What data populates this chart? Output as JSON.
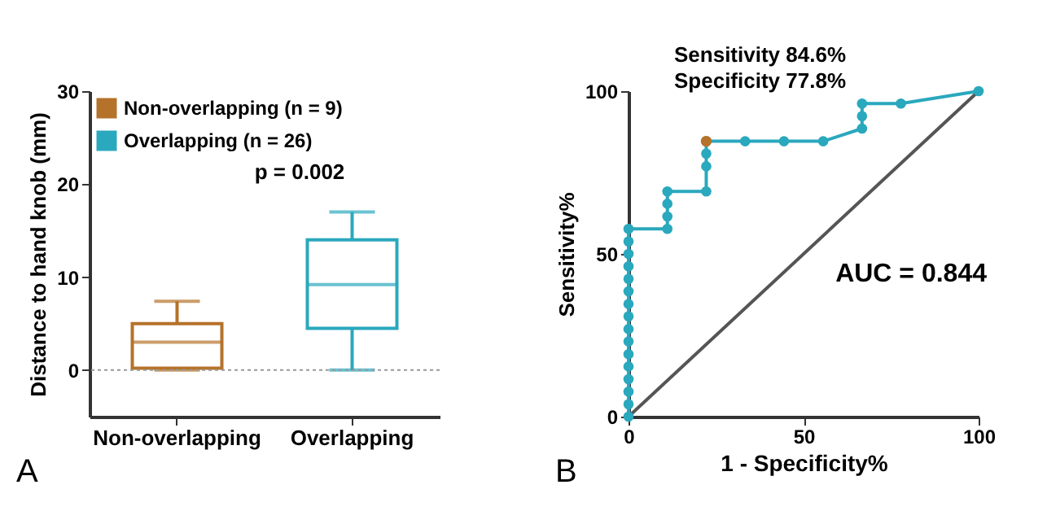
{
  "chart_data": [
    {
      "type": "box",
      "ylabel": "Distance to hand knob (mm)",
      "categories": [
        "Non-overlapping",
        "Overlapping"
      ],
      "ylim": [
        -5,
        30
      ],
      "yticks": [
        0,
        10,
        20,
        30
      ],
      "legend": "top left",
      "grid": false,
      "series": [
        {
          "name": "Non-overlapping (n = 9)",
          "color": "#b5722a",
          "boxes": [
            {
              "low": 0,
              "q1": 0.2,
              "median": 3,
              "q3": 5,
              "high": 7.4
            },
            null
          ]
        },
        {
          "name": "Overlapping (n = 26)",
          "color": "#2aa8bd",
          "boxes": [
            null,
            {
              "low": 0,
              "q1": 4.5,
              "median": 9.2,
              "q3": 14,
              "high": 17
            }
          ]
        }
      ],
      "ref_lines": [
        {
          "axis": "y",
          "value": 0,
          "color": "#999999",
          "line_style": "dotted"
        }
      ],
      "annotations": [
        "p = 0.002",
        "A"
      ]
    },
    {
      "type": "line",
      "xlabel": "1 - Specificity%",
      "ylabel": "Sensitivity%",
      "xlim": [
        0,
        100
      ],
      "ylim": [
        0,
        100
      ],
      "xticks": [
        0,
        50,
        100
      ],
      "yticks": [
        0,
        50,
        100
      ],
      "grid": false,
      "legend": false,
      "series": [
        {
          "type": "line",
          "color": "#555555",
          "marker": "none",
          "x": [
            0,
            100
          ],
          "values": [
            0,
            100
          ]
        },
        {
          "type": "line",
          "color": "#2aa8bd",
          "marker": "circle",
          "x": [
            0,
            0,
            0,
            0,
            0,
            0,
            0,
            0,
            0,
            0,
            0,
            0,
            0,
            0,
            0,
            0,
            11.1,
            11.1,
            11.1,
            11.1,
            22.2,
            22.2,
            22.2,
            22.2,
            33.3,
            44.4,
            55.6,
            66.7,
            66.7,
            66.7,
            77.8,
            100
          ],
          "values": [
            0,
            3.8,
            7.7,
            11.5,
            15.4,
            19.2,
            23.1,
            26.9,
            30.8,
            34.6,
            38.5,
            42.3,
            46.2,
            50,
            53.8,
            57.7,
            57.7,
            61.5,
            65.4,
            69.2,
            69.2,
            76.9,
            80.8,
            84.6,
            84.6,
            84.6,
            84.6,
            88.5,
            92.3,
            96.2,
            96.2,
            100
          ]
        },
        {
          "type": "scatter",
          "color": "#b5722a",
          "marker": "circle",
          "x": [
            22.2
          ],
          "values": [
            84.6
          ]
        }
      ],
      "annotations": [
        "Sensitivity 84.6%",
        "Specificity 77.8%",
        "AUC = 0.844",
        "B"
      ]
    }
  ]
}
